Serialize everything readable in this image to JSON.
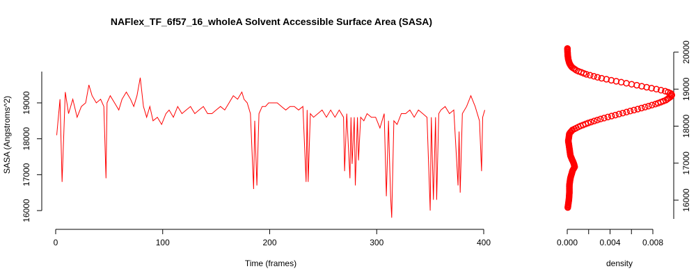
{
  "chart_data": [
    {
      "type": "line",
      "title": "NAFlex_TF_6f57_16_wholeA Solvent Accessible Surface Area (SASA)",
      "xlabel": "Time (frames)",
      "ylabel": "SASA (Angstroms^2)",
      "xlim": [
        0,
        400
      ],
      "ylim": [
        15800,
        19800
      ],
      "x_ticks": [
        0,
        100,
        200,
        300,
        400
      ],
      "x_tick_labels": [
        "0",
        "100",
        "200",
        "300",
        "400"
      ],
      "y_ticks": [
        16000,
        17000,
        18000,
        19000
      ],
      "y_tick_labels": [
        "16000",
        "17000",
        "18000",
        "19000"
      ],
      "grid": false,
      "color": "#ff0000",
      "series": [
        {
          "x": [
            1,
            4,
            6,
            9,
            12,
            16,
            20,
            24,
            28,
            31,
            34,
            38,
            42,
            45,
            47,
            48,
            51,
            55,
            59,
            62,
            66,
            70,
            73,
            76,
            79,
            82,
            85,
            88,
            91,
            95,
            99,
            103,
            106,
            110,
            114,
            118,
            122,
            126,
            130,
            134,
            138,
            142,
            146,
            150,
            154,
            158,
            162,
            166,
            170,
            174,
            176,
            179,
            182,
            185,
            186,
            188,
            190,
            193,
            196,
            199,
            203,
            207,
            211,
            215,
            219,
            223,
            227,
            231,
            234,
            235,
            236,
            238,
            241,
            245,
            249,
            253,
            257,
            261,
            265,
            269,
            270,
            272,
            275,
            276,
            277,
            279,
            280,
            282,
            283,
            285,
            288,
            291,
            295,
            299,
            303,
            307,
            309,
            311,
            312,
            313,
            314,
            316,
            319,
            323,
            327,
            331,
            335,
            339,
            343,
            347,
            350,
            351,
            353,
            355,
            356,
            358,
            360,
            364,
            368,
            372,
            376,
            377,
            378,
            380,
            384,
            388,
            392,
            396,
            398,
            399,
            401
          ],
          "y": [
            18100,
            19100,
            16800,
            19300,
            18700,
            19100,
            18600,
            18900,
            19000,
            19500,
            19200,
            19000,
            19100,
            18900,
            16900,
            19000,
            19200,
            19000,
            18800,
            19100,
            19300,
            19100,
            18900,
            19200,
            19700,
            18900,
            18600,
            18900,
            18500,
            18600,
            18400,
            18700,
            18800,
            18600,
            18900,
            18700,
            18800,
            18900,
            18700,
            18800,
            18900,
            18700,
            18700,
            18800,
            18900,
            18800,
            19000,
            19200,
            19100,
            19300,
            19100,
            19000,
            18700,
            16600,
            18500,
            16700,
            18700,
            18900,
            18900,
            19000,
            19000,
            19000,
            18900,
            18800,
            18900,
            18900,
            18800,
            18900,
            16800,
            18800,
            16800,
            18700,
            18600,
            18700,
            18800,
            18600,
            18800,
            18600,
            18800,
            18600,
            17100,
            18700,
            16900,
            18600,
            17300,
            18600,
            16700,
            18600,
            17400,
            18600,
            18500,
            18700,
            18600,
            18600,
            18300,
            18700,
            16400,
            18500,
            17400,
            16400,
            15800,
            18500,
            18400,
            18700,
            18700,
            18800,
            18600,
            18800,
            18700,
            18600,
            16000,
            18600,
            16300,
            18600,
            16300,
            18700,
            18800,
            18900,
            18700,
            18800,
            16700,
            18200,
            16500,
            18700,
            18900,
            19200,
            18900,
            18500,
            17100,
            18600,
            18800
          ]
        }
      ]
    },
    {
      "type": "line",
      "xlabel": "density",
      "ylabel": "",
      "xlim": [
        0,
        0.01
      ],
      "ylim": [
        15800,
        19800
      ],
      "x_ticks": [
        0.0,
        0.004,
        0.008
      ],
      "x_tick_labels": [
        "0.000",
        "0.004",
        "0.008"
      ],
      "minor_x_ticks": [
        0.002,
        0.006
      ],
      "y_ticks": [
        16000,
        17000,
        18000,
        19000,
        20000
      ],
      "y_tick_labels": [
        "16000",
        "17000",
        "18000",
        "19000",
        "20000"
      ],
      "y_axis_side": "right",
      "grid": false,
      "marker": "open-circle",
      "color": "#ff0000",
      "series": [
        {
          "y": [
            15800,
            16000,
            16200,
            16400,
            16600,
            16800,
            16900,
            17000,
            17200,
            17400,
            17600,
            17800,
            17900,
            18000,
            18100,
            18200,
            18300,
            18400,
            18500,
            18600,
            18700,
            18800,
            18850,
            18900,
            18950,
            19000,
            19100,
            19200,
            19300,
            19400,
            19500,
            19600,
            19700,
            19800,
            19900,
            20000,
            20100
          ],
          "density": [
            5e-05,
            0.00015,
            0.0002,
            0.0002,
            0.0003,
            0.0005,
            0.0007,
            0.0006,
            0.0003,
            0.0002,
            0.0001,
            0.0002,
            0.0005,
            0.0012,
            0.0021,
            0.0032,
            0.0045,
            0.0058,
            0.0071,
            0.0083,
            0.0092,
            0.0097,
            0.0098,
            0.0096,
            0.0091,
            0.0083,
            0.0066,
            0.0048,
            0.0031,
            0.0018,
            0.0009,
            0.0004,
            0.0002,
            0.0001,
            5e-05,
            3e-05,
            2e-05
          ]
        }
      ]
    }
  ]
}
